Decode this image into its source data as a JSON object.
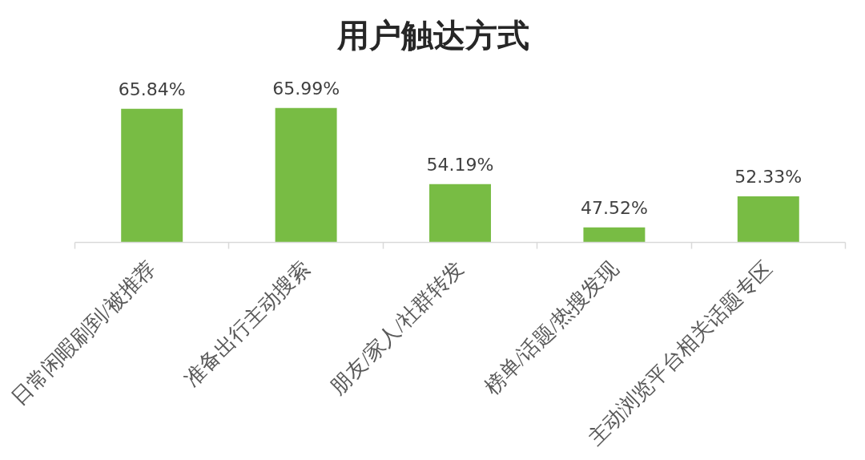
{
  "chart_data": {
    "type": "bar",
    "title": "用户触达方式",
    "categories": [
      "日常闲暇刷到/被推荐",
      "准备出行主动搜索",
      "朋友/家人/社群转发",
      "榜单/话题/热搜发现",
      "主动浏览平台相关话题专区"
    ],
    "values": [
      65.84,
      65.99,
      54.19,
      47.52,
      52.33
    ],
    "color": "#78bc44",
    "value_labels": [
      "65.84%",
      "65.99%",
      "54.19%",
      "47.52%",
      "52.33%"
    ],
    "ylim": [
      45.2,
      65.99
    ],
    "tick_labels": "x",
    "grid": false
  }
}
